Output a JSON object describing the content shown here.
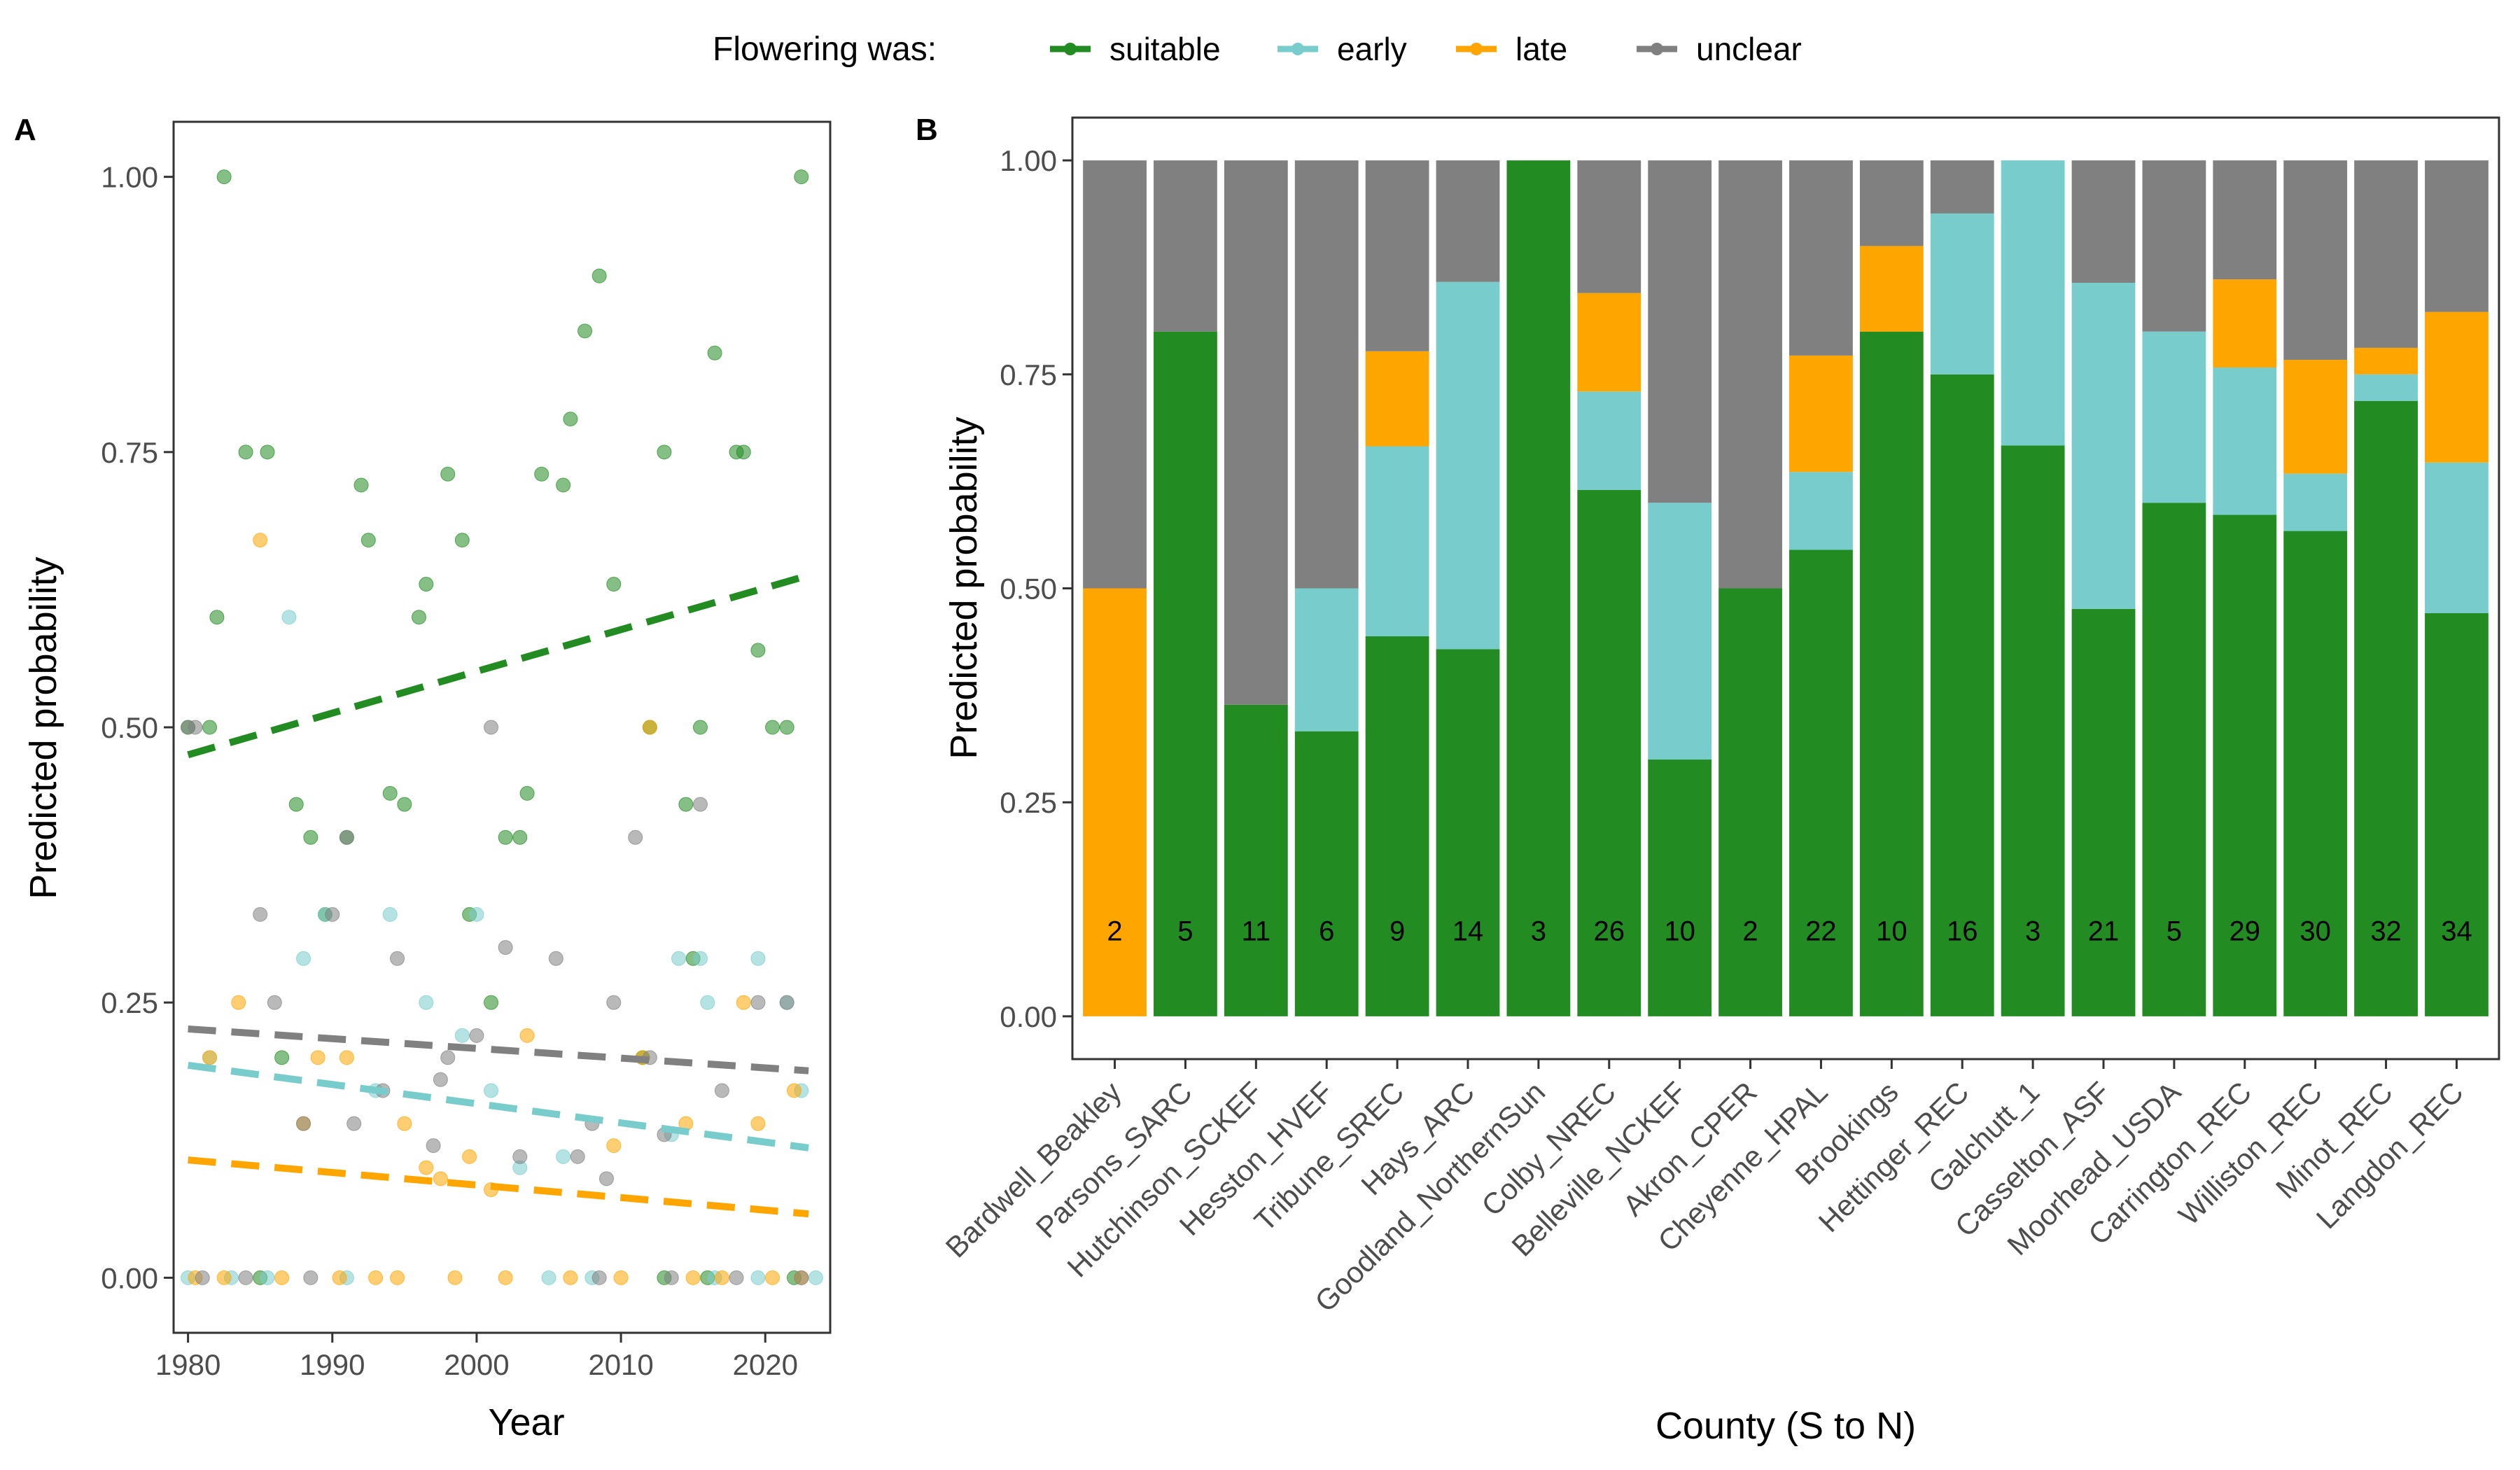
{
  "legend": {
    "title": "Flowering was:",
    "items": [
      {
        "label": "suitable",
        "color": "#228B22"
      },
      {
        "label": "early",
        "color": "#79CCCC"
      },
      {
        "label": "late",
        "color": "#FFA500"
      },
      {
        "label": "unclear",
        "color": "#808080"
      }
    ]
  },
  "chart_data": [
    {
      "panel": "A",
      "type": "scatter",
      "xlabel": "Year",
      "ylabel": "Predicted probability",
      "xlim": [
        1979,
        2024.5
      ],
      "ylim": [
        -0.05,
        1.05
      ],
      "xticks": [
        1980,
        1990,
        2000,
        2010,
        2020
      ],
      "yticks": [
        0.0,
        0.25,
        0.5,
        0.75,
        1.0
      ],
      "ytick_labels": [
        "0.00",
        "0.25",
        "0.50",
        "0.75",
        "1.00"
      ],
      "grid": false,
      "series": [
        {
          "name": "suitable",
          "color": "#228B22",
          "trend": [
            [
              1980,
              0.475
            ],
            [
              2023,
              0.638
            ]
          ],
          "points": [
            [
              1980,
              0.5
            ],
            [
              1981.5,
              0.5
            ],
            [
              1982,
              0.6
            ],
            [
              1982.5,
              1.0
            ],
            [
              1984,
              0.75
            ],
            [
              1985.5,
              0.75
            ],
            [
              1986.5,
              0.2
            ],
            [
              1987.5,
              0.43
            ],
            [
              1988.5,
              0.4
            ],
            [
              1989.5,
              0.33
            ],
            [
              1991,
              0.4
            ],
            [
              1992,
              0.72
            ],
            [
              1992.5,
              0.67
            ],
            [
              1994,
              0.44
            ],
            [
              1995,
              0.43
            ],
            [
              1996,
              0.6
            ],
            [
              1996.5,
              0.63
            ],
            [
              1998,
              0.73
            ],
            [
              1999,
              0.67
            ],
            [
              1999.5,
              0.33
            ],
            [
              2001,
              0.25
            ],
            [
              2002,
              0.4
            ],
            [
              2003,
              0.4
            ],
            [
              2003.5,
              0.44
            ],
            [
              2004.5,
              0.73
            ],
            [
              2006,
              0.72
            ],
            [
              2006.5,
              0.78
            ],
            [
              2007.5,
              0.86
            ],
            [
              2008.5,
              0.91
            ],
            [
              2009.5,
              0.63
            ],
            [
              2011.5,
              0.2
            ],
            [
              2012,
              0.5
            ],
            [
              2013,
              0.75
            ],
            [
              2014.5,
              0.43
            ],
            [
              2015.5,
              0.5
            ],
            [
              2015,
              0.29
            ],
            [
              2016.5,
              0.84
            ],
            [
              2018,
              0.75
            ],
            [
              2018.5,
              0.75
            ],
            [
              2019.5,
              0.57
            ],
            [
              2020.5,
              0.5
            ],
            [
              2021.5,
              0.5
            ],
            [
              2022.5,
              1.0
            ],
            [
              1985,
              0.0
            ],
            [
              2013,
              0.0
            ],
            [
              2016,
              0.0
            ],
            [
              2022,
              0.0
            ]
          ]
        },
        {
          "name": "early",
          "color": "#79CCCC",
          "trend": [
            [
              1980,
              0.193
            ],
            [
              2023,
              0.118
            ]
          ],
          "points": [
            [
              1981.5,
              0.2
            ],
            [
              1987,
              0.6
            ],
            [
              1988,
              0.29
            ],
            [
              1989.5,
              0.33
            ],
            [
              1993,
              0.17
            ],
            [
              1994,
              0.33
            ],
            [
              1996.5,
              0.25
            ],
            [
              1999,
              0.22
            ],
            [
              2000,
              0.33
            ],
            [
              2001,
              0.17
            ],
            [
              2003,
              0.1
            ],
            [
              2006,
              0.11
            ],
            [
              2013.5,
              0.13
            ],
            [
              2014,
              0.29
            ],
            [
              2015.5,
              0.29
            ],
            [
              2016,
              0.25
            ],
            [
              2019.5,
              0.29
            ],
            [
              2021.5,
              0.25
            ],
            [
              2022.5,
              0.17
            ],
            [
              1980,
              0.0
            ],
            [
              1983,
              0.0
            ],
            [
              1985.5,
              0.0
            ],
            [
              1991,
              0.0
            ],
            [
              2005,
              0.0
            ],
            [
              2008,
              0.0
            ],
            [
              2016.5,
              0.0
            ],
            [
              2019.5,
              0.0
            ],
            [
              2023.5,
              0.0
            ]
          ]
        },
        {
          "name": "late",
          "color": "#FFA500",
          "trend": [
            [
              1980,
              0.107
            ],
            [
              2023,
              0.058
            ]
          ],
          "points": [
            [
              1981.5,
              0.2
            ],
            [
              1983.5,
              0.25
            ],
            [
              1985,
              0.67
            ],
            [
              1988,
              0.14
            ],
            [
              1989,
              0.2
            ],
            [
              1991,
              0.2
            ],
            [
              1995,
              0.14
            ],
            [
              1996.5,
              0.1
            ],
            [
              1997.5,
              0.09
            ],
            [
              1999.5,
              0.11
            ],
            [
              2001,
              0.08
            ],
            [
              2003.5,
              0.22
            ],
            [
              2009.5,
              0.12
            ],
            [
              2011.5,
              0.2
            ],
            [
              2012,
              0.5
            ],
            [
              2014.5,
              0.14
            ],
            [
              2018.5,
              0.25
            ],
            [
              2019.5,
              0.14
            ],
            [
              2022,
              0.17
            ],
            [
              1980.5,
              0.0
            ],
            [
              1982.5,
              0.0
            ],
            [
              1986.5,
              0.0
            ],
            [
              1990.5,
              0.0
            ],
            [
              1993,
              0.0
            ],
            [
              1994.5,
              0.0
            ],
            [
              1998.5,
              0.0
            ],
            [
              2002,
              0.0
            ],
            [
              2006.5,
              0.0
            ],
            [
              2010,
              0.0
            ],
            [
              2015,
              0.0
            ],
            [
              2017,
              0.0
            ],
            [
              2020.5,
              0.0
            ],
            [
              2022.5,
              0.0
            ]
          ]
        },
        {
          "name": "unclear",
          "color": "#808080",
          "trend": [
            [
              1980,
              0.226
            ],
            [
              2023,
              0.188
            ]
          ],
          "points": [
            [
              1980,
              0.5
            ],
            [
              1980.5,
              0.5
            ],
            [
              1985,
              0.33
            ],
            [
              1986,
              0.25
            ],
            [
              1988,
              0.14
            ],
            [
              1990,
              0.33
            ],
            [
              1991,
              0.4
            ],
            [
              1991.5,
              0.14
            ],
            [
              1993.5,
              0.17
            ],
            [
              1994.5,
              0.29
            ],
            [
              1997,
              0.12
            ],
            [
              1997.5,
              0.18
            ],
            [
              1998,
              0.2
            ],
            [
              2000,
              0.22
            ],
            [
              2001,
              0.5
            ],
            [
              2002,
              0.3
            ],
            [
              2003,
              0.11
            ],
            [
              2005.5,
              0.29
            ],
            [
              2007,
              0.11
            ],
            [
              2008,
              0.14
            ],
            [
              2009,
              0.09
            ],
            [
              2009.5,
              0.25
            ],
            [
              2011,
              0.4
            ],
            [
              2012,
              0.2
            ],
            [
              2013,
              0.13
            ],
            [
              2015.5,
              0.43
            ],
            [
              2017,
              0.17
            ],
            [
              2019.5,
              0.25
            ],
            [
              2021.5,
              0.25
            ],
            [
              1981,
              0.0
            ],
            [
              1984,
              0.0
            ],
            [
              1988.5,
              0.0
            ],
            [
              2008.5,
              0.0
            ],
            [
              2013.5,
              0.0
            ],
            [
              2018,
              0.0
            ],
            [
              2022.5,
              0.0
            ]
          ]
        }
      ]
    },
    {
      "panel": "B",
      "type": "bar",
      "stacked": true,
      "xlabel": "County (S to N)",
      "ylabel": "Predicted probability",
      "ylim": [
        -0.05,
        1.05
      ],
      "yticks": [
        0.0,
        0.25,
        0.5,
        0.75,
        1.0
      ],
      "ytick_labels": [
        "0.00",
        "0.25",
        "0.50",
        "0.75",
        "1.00"
      ],
      "grid": false,
      "categories": [
        "Bardwell_Beakley",
        "Parsons_SARC",
        "Hutchinson_SCKEF",
        "Hesston_HVEF",
        "Tribune_SREC",
        "Hays_ARC",
        "Goodland_NorthernSun",
        "Colby_NREC",
        "Belleville_NCKEF",
        "Akron_CPER",
        "Cheyenne_HPAL",
        "Brookings",
        "Hettinger_REC",
        "Galchutt_1",
        "Casselton_ASF",
        "Moorhead_USDA",
        "Carrington_REC",
        "Williston_REC",
        "Minot_REC",
        "Langdon_REC"
      ],
      "counts": [
        "2",
        "5",
        "11",
        "6",
        "9",
        "14",
        "3",
        "26",
        "10",
        "2",
        "22",
        "10",
        "16",
        "3",
        "21",
        "5",
        "29",
        "30",
        "32",
        "34"
      ],
      "series": [
        {
          "name": "suitable",
          "color": "#228B22",
          "values": [
            0,
            0.8,
            0.364,
            0.333,
            0.444,
            0.429,
            1.0,
            0.615,
            0.3,
            0.5,
            0.545,
            0.8,
            0.75,
            0.667,
            0.476,
            0.6,
            0.586,
            0.567,
            0.719,
            0.471
          ]
        },
        {
          "name": "early",
          "color": "#79CCCC",
          "values": [
            0,
            0,
            0,
            0.167,
            0.222,
            0.429,
            0,
            0.115,
            0.3,
            0,
            0.091,
            0,
            0.188,
            0.333,
            0.381,
            0.2,
            0.172,
            0.067,
            0.031,
            0.176
          ]
        },
        {
          "name": "late",
          "color": "#FFA500",
          "values": [
            0.5,
            0,
            0,
            0,
            0.111,
            0,
            0,
            0.115,
            0,
            0,
            0.136,
            0.1,
            0,
            0,
            0,
            0,
            0.103,
            0.133,
            0.031,
            0.176
          ]
        },
        {
          "name": "unclear",
          "color": "#808080",
          "values": [
            0.5,
            0.2,
            0.636,
            0.5,
            0.223,
            0.142,
            0,
            0.155,
            0.4,
            0.5,
            0.228,
            0.1,
            0.062,
            0,
            0.143,
            0.2,
            0.139,
            0.233,
            0.219,
            0.177
          ]
        }
      ]
    }
  ]
}
